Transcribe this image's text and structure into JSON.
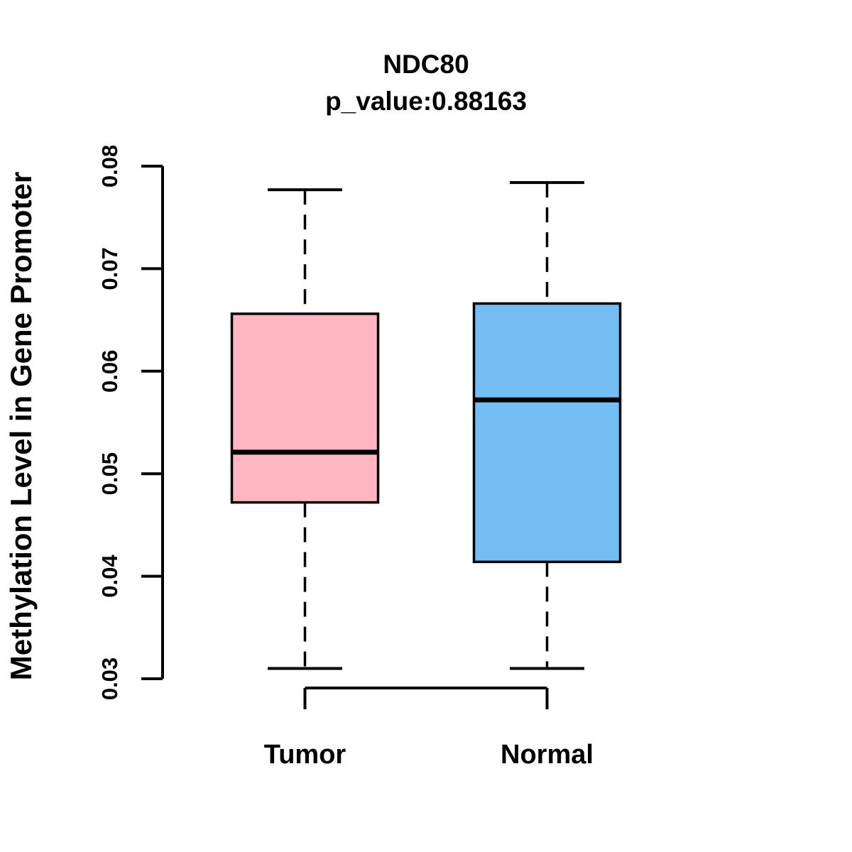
{
  "chart_data": {
    "type": "boxplot",
    "title": "NDC80",
    "subtitle": "p_value:0.88163",
    "xlabel": "",
    "ylabel": "Methylation Level in Gene Promoter",
    "categories": [
      "Tumor",
      "Normal"
    ],
    "series": [
      {
        "name": "Tumor",
        "whisker_low": 0.031,
        "q1": 0.0472,
        "median": 0.0521,
        "q3": 0.0656,
        "whisker_high": 0.0777,
        "fill_color": "#FFB6C1"
      },
      {
        "name": "Normal",
        "whisker_low": 0.031,
        "q1": 0.0414,
        "median": 0.0572,
        "q3": 0.0666,
        "whisker_high": 0.0784,
        "fill_color": "#74BEF4"
      }
    ],
    "ylim": [
      0.03,
      0.08
    ],
    "yticks": [
      0.03,
      0.04,
      0.05,
      0.06,
      0.07,
      0.08
    ],
    "ytick_labels": [
      "0.03",
      "0.04",
      "0.05",
      "0.06",
      "0.07",
      "0.08"
    ],
    "grid": "off",
    "legend": "none",
    "stroke_color": "#000000"
  }
}
